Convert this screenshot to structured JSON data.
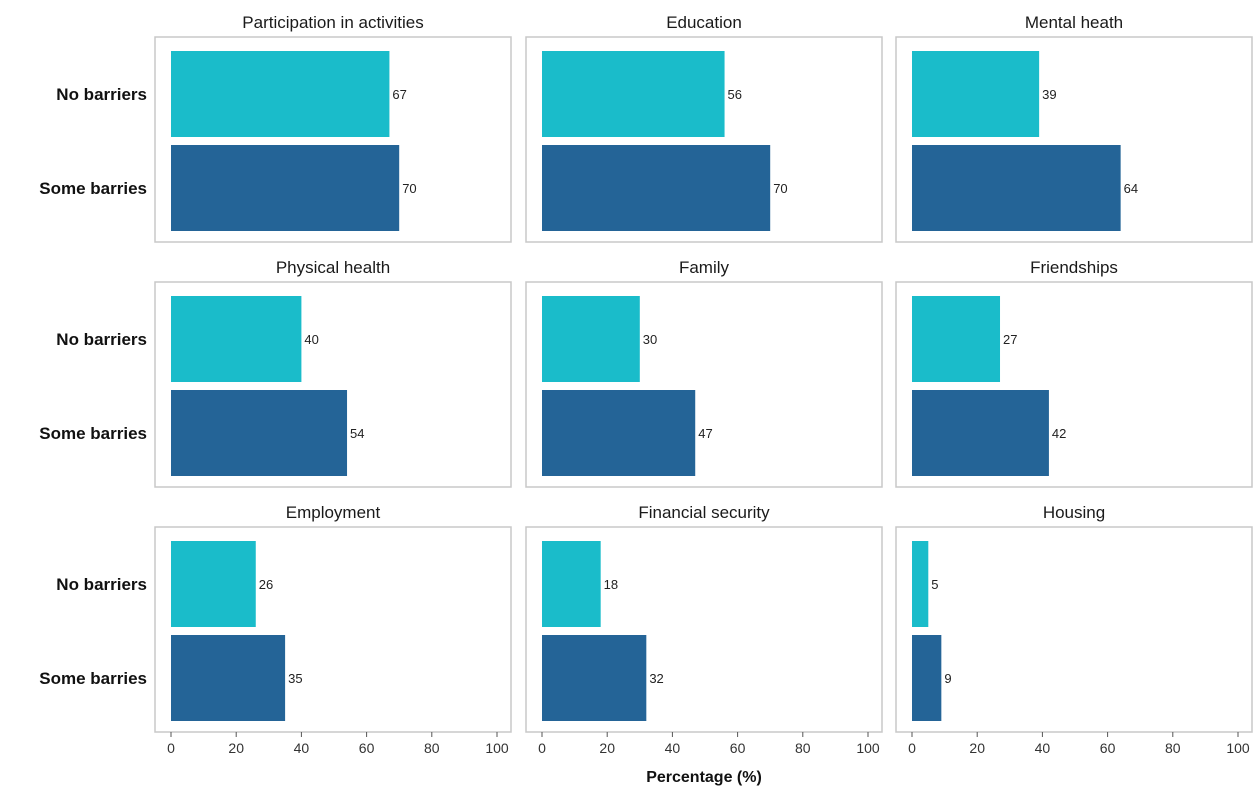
{
  "chart_data": {
    "type": "bar",
    "orientation": "horizontal",
    "facets": true,
    "categories": [
      "No barriers",
      "Some barries"
    ],
    "xlabel": "Percentage (%)",
    "xlim": [
      0,
      100
    ],
    "xticks": [
      "0",
      "20",
      "40",
      "60",
      "80",
      "100"
    ],
    "grid": false,
    "colors": {
      "No barriers": "#1ABCCA",
      "Some barries": "#246497"
    },
    "panels": [
      {
        "title": "Participation in activities",
        "values": [
          67,
          70
        ]
      },
      {
        "title": "Education",
        "values": [
          56,
          70
        ]
      },
      {
        "title": "Mental heath",
        "values": [
          39,
          64
        ]
      },
      {
        "title": "Physical health",
        "values": [
          40,
          54
        ]
      },
      {
        "title": "Family",
        "values": [
          30,
          47
        ]
      },
      {
        "title": "Friendships",
        "values": [
          27,
          42
        ]
      },
      {
        "title": "Employment",
        "values": [
          26,
          35
        ]
      },
      {
        "title": "Financial security",
        "values": [
          18,
          32
        ]
      },
      {
        "title": "Housing",
        "values": [
          5,
          9
        ]
      }
    ]
  }
}
